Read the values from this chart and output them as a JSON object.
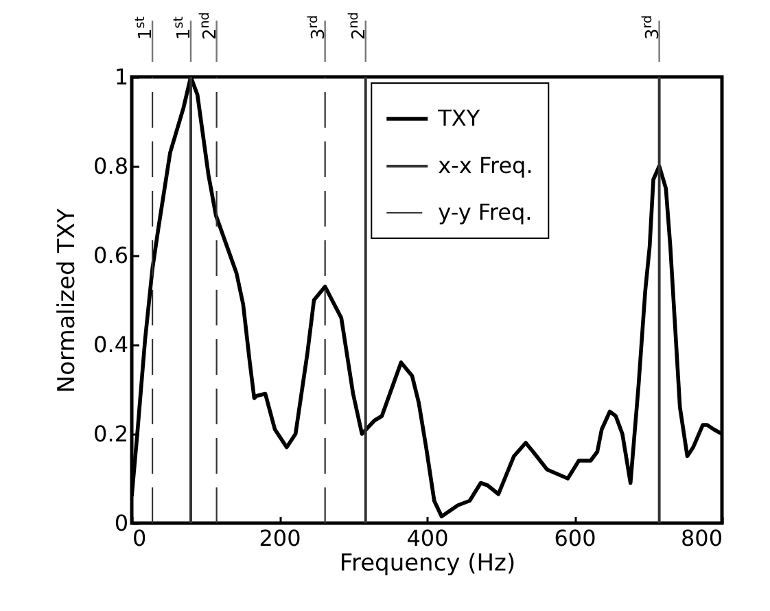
{
  "chart_data": {
    "type": "line",
    "xlabel": "Frequency (Hz)",
    "ylabel": "Normalized TXY",
    "xlim": [
      0,
      800
    ],
    "ylim": [
      0,
      1
    ],
    "xticks": [
      0,
      200,
      400,
      600,
      800
    ],
    "yticks": [
      0,
      0.2,
      0.4,
      0.6,
      0.8,
      1
    ],
    "grid": false,
    "legend": "top right",
    "series": [
      {
        "name": "TXY",
        "color": "#000000",
        "line_style": "solid",
        "x": [
          0,
          8,
          18,
          28,
          36,
          52,
          70,
          80,
          89,
          104,
          114,
          142,
          151,
          160,
          166,
          169,
          181,
          194,
          210,
          222,
          238,
          247,
          262,
          284,
          300,
          312,
          329,
          339,
          365,
          380,
          389,
          399,
          410,
          420,
          442,
          458,
          473,
          482,
          497,
          518,
          534,
          544,
          563,
          577,
          591,
          606,
          622,
          631,
          637,
          648,
          656,
          665,
          676,
          687,
          696,
          702,
          707,
          715,
          724,
          730,
          743,
          753,
          761,
          774,
          780,
          789,
          800
        ],
        "values": [
          0.06,
          0.21,
          0.41,
          0.57,
          0.66,
          0.83,
          0.93,
          1.0,
          0.96,
          0.78,
          0.69,
          0.56,
          0.49,
          0.36,
          0.28,
          0.285,
          0.29,
          0.21,
          0.17,
          0.2,
          0.38,
          0.5,
          0.53,
          0.46,
          0.29,
          0.2,
          0.23,
          0.24,
          0.36,
          0.33,
          0.27,
          0.17,
          0.05,
          0.015,
          0.04,
          0.05,
          0.09,
          0.085,
          0.065,
          0.15,
          0.18,
          0.16,
          0.12,
          0.11,
          0.1,
          0.14,
          0.14,
          0.16,
          0.21,
          0.25,
          0.24,
          0.2,
          0.09,
          0.31,
          0.52,
          0.62,
          0.77,
          0.8,
          0.75,
          0.62,
          0.26,
          0.15,
          0.17,
          0.22,
          0.22,
          0.21,
          0.2
        ]
      },
      {
        "name": "x-x Freq.",
        "color": "#333333",
        "line_style": "solid",
        "x": [
          80,
          80,
          null,
          317,
          317,
          null,
          715,
          715
        ],
        "values": [
          0,
          1,
          null,
          0,
          1,
          null,
          0,
          1
        ]
      },
      {
        "name": "y-y Freq.",
        "color": "#333333",
        "line_style": "dashed",
        "x": [
          28,
          28,
          null,
          115,
          115,
          null,
          262,
          262
        ],
        "values": [
          0,
          1,
          null,
          0,
          1,
          null,
          0,
          1
        ]
      }
    ],
    "annotations": [
      {
        "text": "1$^{st}$",
        "x": 28,
        "y": 1
      },
      {
        "text": "1$^{st}$",
        "x": 80,
        "y": 1
      },
      {
        "text": "2$^{nd}$",
        "x": 115,
        "y": 1
      },
      {
        "text": "3$^{rd}$",
        "x": 262,
        "y": 1
      },
      {
        "text": "2$^{nd}$",
        "x": 317,
        "y": 1
      },
      {
        "text": "3$^{rd}$",
        "x": 715,
        "y": 1
      }
    ]
  }
}
